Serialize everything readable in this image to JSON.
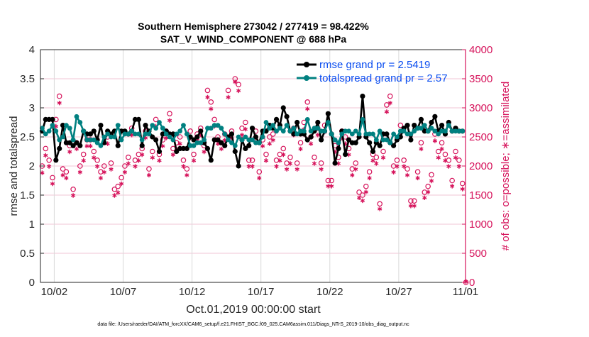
{
  "chart_data": {
    "type": "line",
    "title": [
      "Southern Hemisphere 273042 / 277419 = 98.422%",
      "SAT_V_WIND_COMPONENT @ 688 hPa"
    ],
    "xlabel": "Oct.01,2019 00:00:00 start",
    "ylabel": "rmse and totalspread",
    "y2label": "# of obs: o=possible; ∗=assimilated",
    "footer": "data file: /Users/raeder/DAI/ATM_forcXX/CAM6_setup/f.e21.FHIST_BGC.f09_025.CAM6assim.011/Diags_NTrS_2019-10/obs_diag_output.nc",
    "xlim_days": [
      0,
      31
    ],
    "x_ticks": [
      {
        "day": 1,
        "label": "10/02"
      },
      {
        "day": 6,
        "label": "10/07"
      },
      {
        "day": 11,
        "label": "10/12"
      },
      {
        "day": 16,
        "label": "10/17"
      },
      {
        "day": 21,
        "label": "10/22"
      },
      {
        "day": 26,
        "label": "10/27"
      },
      {
        "day": 31,
        "label": "11/01"
      }
    ],
    "ylim": [
      0,
      4
    ],
    "y_ticks": [
      "0",
      "0.5",
      "1",
      "1.5",
      "2",
      "2.5",
      "3",
      "3.5",
      "4"
    ],
    "y2lim": [
      0,
      4000
    ],
    "y2_ticks": [
      "0",
      "500",
      "1000",
      "1500",
      "2000",
      "2500",
      "3000",
      "3500",
      "4000"
    ],
    "x_start_day": 0.125,
    "x_step_day": 0.25,
    "legend": {
      "placement": "top-right",
      "entries": [
        "rmse grand pr = 2.5419",
        "totalspread grand pr = 2.57"
      ]
    },
    "colors": {
      "rmse": "#000000",
      "totalspread": "#008080",
      "obs": "#d6135b",
      "legend_text": "#0a4df0",
      "grid_v": "#d9d9d9",
      "grid_h": "#f2c6d6"
    },
    "series": [
      {
        "name": "rmse",
        "values": [
          2.6,
          2.8,
          2.8,
          2.8,
          2.1,
          2.3,
          2.7,
          2.4,
          2.4,
          2.35,
          2.4,
          2.35,
          2.6,
          2.55,
          2.55,
          2.6,
          2.45,
          2.7,
          2.4,
          2.6,
          2.55,
          2.6,
          2.35,
          2.6,
          2.6,
          2.55,
          2.6,
          2.8,
          2.8,
          2.35,
          2.7,
          2.6,
          2.5,
          2.45,
          2.25,
          2.55,
          2.6,
          2.55,
          2.55,
          2.25,
          2.3,
          2.3,
          2.3,
          2.5,
          2.45,
          2.5,
          2.6,
          2.4,
          2.3,
          2.1,
          2.45,
          2.45,
          2.4,
          2.35,
          2.5,
          2.55,
          2.25,
          2.0,
          2.45,
          2.3,
          2.35,
          2.65,
          2.5,
          2.4,
          2.6,
          2.6,
          2.7,
          2.65,
          2.8,
          2.7,
          3.0,
          2.85,
          2.6,
          2.55,
          2.75,
          2.55,
          2.55,
          2.45,
          2.5,
          2.6,
          2.75,
          2.45,
          2.6,
          2.9,
          2.55,
          2.05,
          2.3,
          2.6,
          2.2,
          2.45,
          2.4,
          2.4,
          2.5,
          3.2,
          2.5,
          2.4,
          2.25,
          2.4,
          2.35,
          2.55,
          2.55,
          2.4,
          2.35,
          2.45,
          2.5,
          2.65,
          2.7,
          2.45,
          2.7,
          2.65,
          2.8,
          2.6,
          2.6,
          2.75,
          2.85,
          2.6,
          2.7,
          2.55,
          2.75,
          2.6,
          2.65,
          2.6,
          2.6,
          null
        ]
      },
      {
        "name": "totalspread",
        "values": [
          2.65,
          2.55,
          2.6,
          2.7,
          2.6,
          2.45,
          2.5,
          2.7,
          2.65,
          2.45,
          2.85,
          2.75,
          2.6,
          2.45,
          2.45,
          2.45,
          2.4,
          2.35,
          2.5,
          2.55,
          2.5,
          2.5,
          2.7,
          2.45,
          2.55,
          2.55,
          2.6,
          2.55,
          2.55,
          2.45,
          2.55,
          2.55,
          2.7,
          2.65,
          2.75,
          2.65,
          2.55,
          2.5,
          2.45,
          2.55,
          2.6,
          2.7,
          2.55,
          2.35,
          2.35,
          2.4,
          2.4,
          2.45,
          2.65,
          2.65,
          2.7,
          2.7,
          2.65,
          2.55,
          2.45,
          2.4,
          2.35,
          2.5,
          2.45,
          2.5,
          2.45,
          2.45,
          2.4,
          2.4,
          2.5,
          2.75,
          2.65,
          2.7,
          2.6,
          2.65,
          2.6,
          2.7,
          2.6,
          2.65,
          2.55,
          2.6,
          2.6,
          2.8,
          2.6,
          2.65,
          2.65,
          2.6,
          2.6,
          2.75,
          2.55,
          2.45,
          2.4,
          2.55,
          2.6,
          2.6,
          2.55,
          2.6,
          2.55,
          2.8,
          2.55,
          2.55,
          2.55,
          2.45,
          2.6,
          2.45,
          2.45,
          2.4,
          2.55,
          2.5,
          2.6,
          2.6,
          2.55,
          2.55,
          2.6,
          2.65,
          2.65,
          2.7,
          2.6,
          2.65,
          2.6,
          2.55,
          2.6,
          2.6,
          2.7,
          2.6,
          2.6,
          2.6,
          2.6,
          null
        ]
      },
      {
        "name": "obs_possible",
        "axis": "right",
        "values": [
          2000,
          2300,
          2100,
          1800,
          2800,
          3200,
          1950,
          1900,
          2350,
          1600,
          2400,
          2000,
          2200,
          2450,
          2450,
          2250,
          2100,
          1900,
          2000,
          2500,
          2050,
          1600,
          1650,
          1800,
          2000,
          2150,
          2650,
          2100,
          2200,
          2300,
          2600,
          1950,
          2250,
          2800,
          2200,
          2450,
          2600,
          2900,
          2300,
          2400,
          2500,
          2100,
          1950,
          2600,
          2200,
          2550,
          2650,
          2350,
          3300,
          3100,
          2800,
          2500,
          2400,
          2550,
          3300,
          2600,
          3500,
          3400,
          2650,
          2750,
          2100,
          2100,
          2600,
          1900,
          2450,
          2200,
          2500,
          2550,
          2100,
          2200,
          2300,
          2050,
          2150,
          2650,
          2050,
          2400,
          2750,
          3100,
          2500,
          2150,
          2650,
          2050,
          2700,
          1750,
          1750,
          2350,
          2150,
          2600,
          2500,
          2300,
          1950,
          2050,
          1550,
          1500,
          1650,
          1900,
          2200,
          2150,
          1350,
          2250,
          3050,
          3200,
          2000,
          2100,
          2700,
          2100,
          1950,
          1400,
          1400,
          1900,
          2400,
          1550,
          1650,
          1850,
          2550,
          2250,
          2400,
          2200,
          2100,
          1750,
          2250,
          2100,
          1700,
          0
        ]
      },
      {
        "name": "obs_assimilated",
        "axis": "right",
        "values": [
          1920,
          2220,
          2030,
          1730,
          2720,
          3120,
          1880,
          1830,
          2280,
          1530,
          2330,
          1930,
          2130,
          2380,
          2380,
          2180,
          2030,
          1830,
          1930,
          2420,
          1980,
          1530,
          1580,
          1730,
          1930,
          2080,
          2570,
          2030,
          2130,
          2230,
          2520,
          1880,
          2180,
          2720,
          2130,
          2380,
          2520,
          2820,
          2230,
          2330,
          2420,
          2030,
          1880,
          2520,
          2130,
          2480,
          2570,
          2280,
          3220,
          3020,
          2720,
          2420,
          2330,
          2480,
          3220,
          2520,
          3480,
          3330,
          2570,
          2670,
          2030,
          2030,
          2520,
          1830,
          2380,
          2130,
          2420,
          2480,
          2030,
          2130,
          2230,
          1980,
          2080,
          2570,
          1980,
          2330,
          2670,
          3020,
          2420,
          2080,
          2570,
          1980,
          2620,
          1690,
          1690,
          2280,
          2080,
          2520,
          2420,
          2230,
          1880,
          1980,
          1490,
          1440,
          1590,
          1830,
          2130,
          2080,
          1300,
          2180,
          2970,
          3120,
          1930,
          2030,
          2620,
          2030,
          1880,
          1350,
          1350,
          1830,
          2330,
          1490,
          1590,
          1780,
          2470,
          2180,
          2330,
          2130,
          2030,
          1690,
          2180,
          2030,
          1640,
          0
        ]
      }
    ]
  }
}
